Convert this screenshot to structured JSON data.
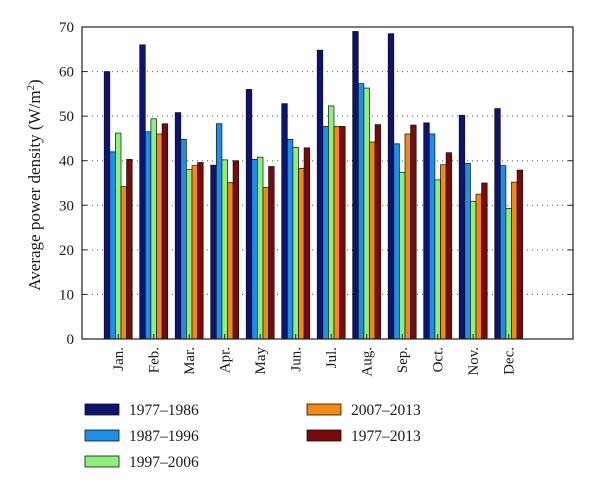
{
  "chart_data": {
    "type": "bar",
    "title": "",
    "xlabel": "",
    "ylabel_main": "Average power density (W/m",
    "ylabel_sup": "2",
    "ylabel_tail": ")",
    "ylim": [
      0,
      70
    ],
    "yticks": [
      0,
      10,
      20,
      30,
      40,
      50,
      60,
      70
    ],
    "grid": "dotted horizontal",
    "legend_position": "bottom",
    "categories": [
      "Jan.",
      "Feb.",
      "Mar.",
      "Apr.",
      "May",
      "Jun.",
      "Jul.",
      "Aug.",
      "Sep.",
      "Oct.",
      "Nov.",
      "Dec."
    ],
    "series": [
      {
        "name": "1977–1986",
        "color": "#0d1470",
        "values": [
          60.0,
          66.0,
          50.8,
          39.0,
          56.0,
          52.8,
          64.8,
          69.0,
          68.5,
          48.5,
          50.2,
          51.7
        ]
      },
      {
        "name": "1987–1996",
        "color": "#1f8ee6",
        "values": [
          42.0,
          46.5,
          44.8,
          48.3,
          40.3,
          44.8,
          47.7,
          57.3,
          43.8,
          46.0,
          39.4,
          38.9
        ]
      },
      {
        "name": "1997–2006",
        "color": "#8ef07a",
        "values": [
          46.2,
          49.4,
          38.0,
          40.2,
          40.8,
          43.0,
          52.3,
          56.3,
          37.4,
          35.7,
          30.9,
          29.3
        ]
      },
      {
        "name": "2007–2013",
        "color": "#f08a10",
        "values": [
          34.2,
          46.0,
          38.9,
          35.1,
          34.0,
          38.3,
          47.7,
          44.2,
          46.0,
          39.1,
          32.5,
          35.2
        ]
      },
      {
        "name": "1977–2013",
        "color": "#7a0a0a",
        "values": [
          40.3,
          48.3,
          39.6,
          40.0,
          38.7,
          42.9,
          47.7,
          48.1,
          48.0,
          41.8,
          35.0,
          37.9
        ]
      }
    ],
    "legend_order": [
      0,
      1,
      2,
      3,
      4
    ]
  }
}
